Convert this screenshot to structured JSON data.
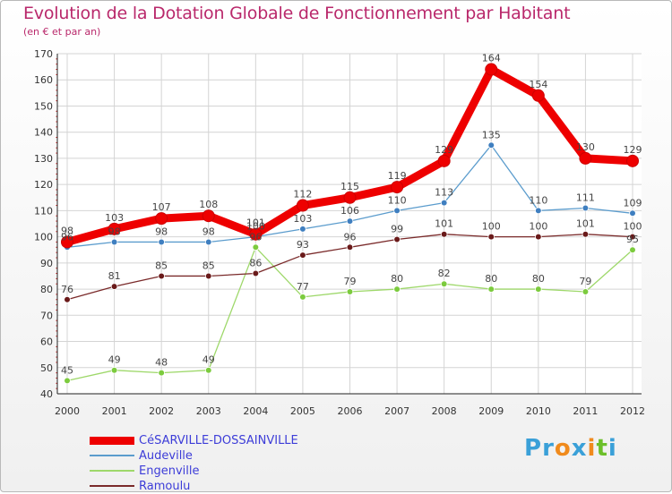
{
  "title": "Evolution de la Dotation Globale de Fonctionnement par Habitant",
  "subtitle": "(en € et par an)",
  "brand": {
    "text": "Proxiti",
    "letters": [
      "P",
      "r",
      "o",
      "x",
      "i",
      "t",
      "i"
    ],
    "colors": [
      "#3aa0d8",
      "#3aa0d8",
      "#f08a1c",
      "#3aa0d8",
      "#f08a1c",
      "#6cbf2a",
      "#3aa0d8"
    ]
  },
  "chart_data": {
    "type": "line",
    "title": "Evolution de la Dotation Globale de Fonctionnement par Habitant",
    "subtitle": "(en € et par an)",
    "xlabel": "",
    "ylabel": "",
    "x": [
      "2000",
      "2001",
      "2002",
      "2003",
      "2004",
      "2005",
      "2006",
      "2007",
      "2008",
      "2009",
      "2010",
      "2011",
      "2012"
    ],
    "ylim": [
      40,
      170
    ],
    "yticks": [
      40,
      50,
      60,
      70,
      80,
      90,
      100,
      110,
      120,
      130,
      140,
      150,
      160,
      170
    ],
    "grid": true,
    "legend_position": "bottom-left",
    "series": [
      {
        "name": "CéSARVILLE-DOSSAINVILLE",
        "color": "#ee0000",
        "marker": "#ee0000",
        "width": "thick",
        "values": [
          98,
          103,
          107,
          108,
          101,
          112,
          115,
          119,
          129,
          164,
          154,
          130,
          129
        ]
      },
      {
        "name": "Audeville",
        "color": "#5b9ccd",
        "marker": "#3f7fc0",
        "width": "thin",
        "values": [
          96,
          98,
          98,
          98,
          100,
          103,
          106,
          110,
          113,
          135,
          110,
          111,
          109
        ]
      },
      {
        "name": "Engenville",
        "color": "#9ed86a",
        "marker": "#7ccb3e",
        "width": "thin",
        "values": [
          45,
          49,
          48,
          49,
          96,
          77,
          79,
          80,
          82,
          80,
          80,
          79,
          95
        ]
      },
      {
        "name": "Ramoulu",
        "color": "#7a2a2a",
        "marker": "#6a1a1a",
        "width": "thin",
        "values": [
          76,
          81,
          85,
          85,
          86,
          93,
          96,
          99,
          101,
          100,
          100,
          101,
          100
        ]
      }
    ]
  }
}
